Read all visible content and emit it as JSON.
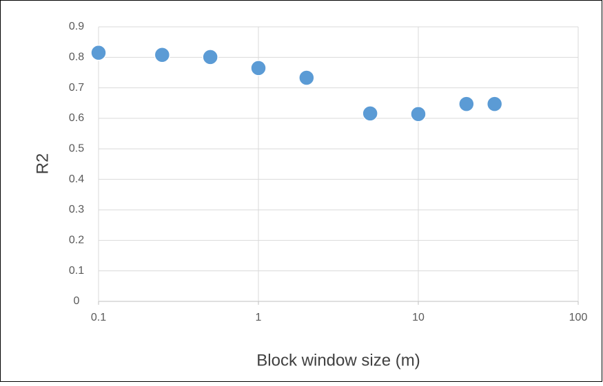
{
  "chart_data": {
    "type": "scatter",
    "x_label": "Block window size (m)",
    "y_label": "R2",
    "x": [
      0.1,
      0.25,
      0.5,
      1,
      2,
      5,
      10,
      20,
      30
    ],
    "values": [
      0.815,
      0.808,
      0.801,
      0.765,
      0.733,
      0.616,
      0.614,
      0.647,
      0.647
    ],
    "color": "#5b9bd5",
    "xscale": "log",
    "xlim": [
      0.1,
      100
    ],
    "xticks": [
      0.1,
      1,
      10,
      100
    ],
    "ylim": [
      0,
      0.9
    ],
    "yticks": [
      0,
      0.1,
      0.2,
      0.3,
      0.4,
      0.5,
      0.6,
      0.7,
      0.8,
      0.9
    ],
    "grid": true
  }
}
